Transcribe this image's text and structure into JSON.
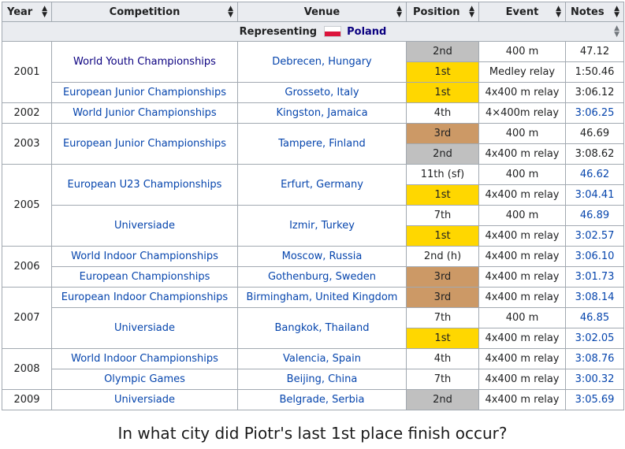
{
  "table": {
    "headers": [
      "Year",
      "Competition",
      "Venue",
      "Position",
      "Event",
      "Notes"
    ],
    "representing_label": "Representing",
    "representing_country": "Poland",
    "rows": [
      {
        "year": "2001",
        "competition": "World Youth Championships",
        "venue": "Debrecen, Hungary",
        "position": "2nd",
        "medal": "silver",
        "event": "400 m",
        "notes": "47.12",
        "notes_link": false
      },
      {
        "year": "",
        "competition": "",
        "venue": "",
        "position": "1st",
        "medal": "gold",
        "event": "Medley relay",
        "notes": "1:50.46",
        "notes_link": false
      },
      {
        "year": "",
        "competition": "European Junior Championships",
        "venue": "Grosseto, Italy",
        "position": "1st",
        "medal": "gold",
        "event": "4x400 m relay",
        "notes": "3:06.12",
        "notes_link": false
      },
      {
        "year": "2002",
        "competition": "World Junior Championships",
        "venue": "Kingston, Jamaica",
        "position": "4th",
        "medal": "",
        "event": "4×400m relay",
        "notes": "3:06.25",
        "notes_link": true
      },
      {
        "year": "2003",
        "competition": "European Junior Championships",
        "venue": "Tampere, Finland",
        "position": "3rd",
        "medal": "bronze",
        "event": "400 m",
        "notes": "46.69",
        "notes_link": false
      },
      {
        "year": "",
        "competition": "",
        "venue": "",
        "position": "2nd",
        "medal": "silver",
        "event": "4x400 m relay",
        "notes": "3:08.62",
        "notes_link": false
      },
      {
        "year": "2005",
        "competition": "European U23 Championships",
        "venue": "Erfurt, Germany",
        "position": "11th (sf)",
        "medal": "",
        "event": "400 m",
        "notes": "46.62",
        "notes_link": true
      },
      {
        "year": "",
        "competition": "",
        "venue": "",
        "position": "1st",
        "medal": "gold",
        "event": "4x400 m relay",
        "notes": "3:04.41",
        "notes_link": true
      },
      {
        "year": "",
        "competition": "Universiade",
        "venue": "Izmir, Turkey",
        "position": "7th",
        "medal": "",
        "event": "400 m",
        "notes": "46.89",
        "notes_link": true
      },
      {
        "year": "",
        "competition": "",
        "venue": "",
        "position": "1st",
        "medal": "gold",
        "event": "4x400 m relay",
        "notes": "3:02.57",
        "notes_link": true
      },
      {
        "year": "2006",
        "competition": "World Indoor Championships",
        "venue": "Moscow, Russia",
        "position": "2nd (h)",
        "medal": "",
        "event": "4x400 m relay",
        "notes": "3:06.10",
        "notes_link": true
      },
      {
        "year": "",
        "competition": "European Championships",
        "venue": "Gothenburg, Sweden",
        "position": "3rd",
        "medal": "bronze",
        "event": "4x400 m relay",
        "notes": "3:01.73",
        "notes_link": true
      },
      {
        "year": "2007",
        "competition": "European Indoor Championships",
        "venue": "Birmingham, United Kingdom",
        "position": "3rd",
        "medal": "bronze",
        "event": "4x400 m relay",
        "notes": "3:08.14",
        "notes_link": true
      },
      {
        "year": "",
        "competition": "Universiade",
        "venue": "Bangkok, Thailand",
        "position": "7th",
        "medal": "",
        "event": "400 m",
        "notes": "46.85",
        "notes_link": true
      },
      {
        "year": "",
        "competition": "",
        "venue": "",
        "position": "1st",
        "medal": "gold",
        "event": "4x400 m relay",
        "notes": "3:02.05",
        "notes_link": true
      },
      {
        "year": "2008",
        "competition": "World Indoor Championships",
        "venue": "Valencia, Spain",
        "position": "4th",
        "medal": "",
        "event": "4x400 m relay",
        "notes": "3:08.76",
        "notes_link": true
      },
      {
        "year": "",
        "competition": "Olympic Games",
        "venue": "Beijing, China",
        "position": "7th",
        "medal": "",
        "event": "4x400 m relay",
        "notes": "3:00.32",
        "notes_link": true
      },
      {
        "year": "2009",
        "competition": "Universiade",
        "venue": "Belgrade, Serbia",
        "position": "2nd",
        "medal": "silver",
        "event": "4x400 m relay",
        "notes": "3:05.69",
        "notes_link": true
      }
    ]
  },
  "question": "In what city did Piotr's last 1st place finish occur?",
  "colors": {
    "gold": "#ffd700",
    "silver": "#c0c0c0",
    "bronze": "#cc9966",
    "link": "#0645ad",
    "header_bg": "#eaecf0",
    "border": "#a2a9b1"
  },
  "icons": {
    "sort": "sort-arrows-icon",
    "flag": "poland-flag-icon"
  }
}
